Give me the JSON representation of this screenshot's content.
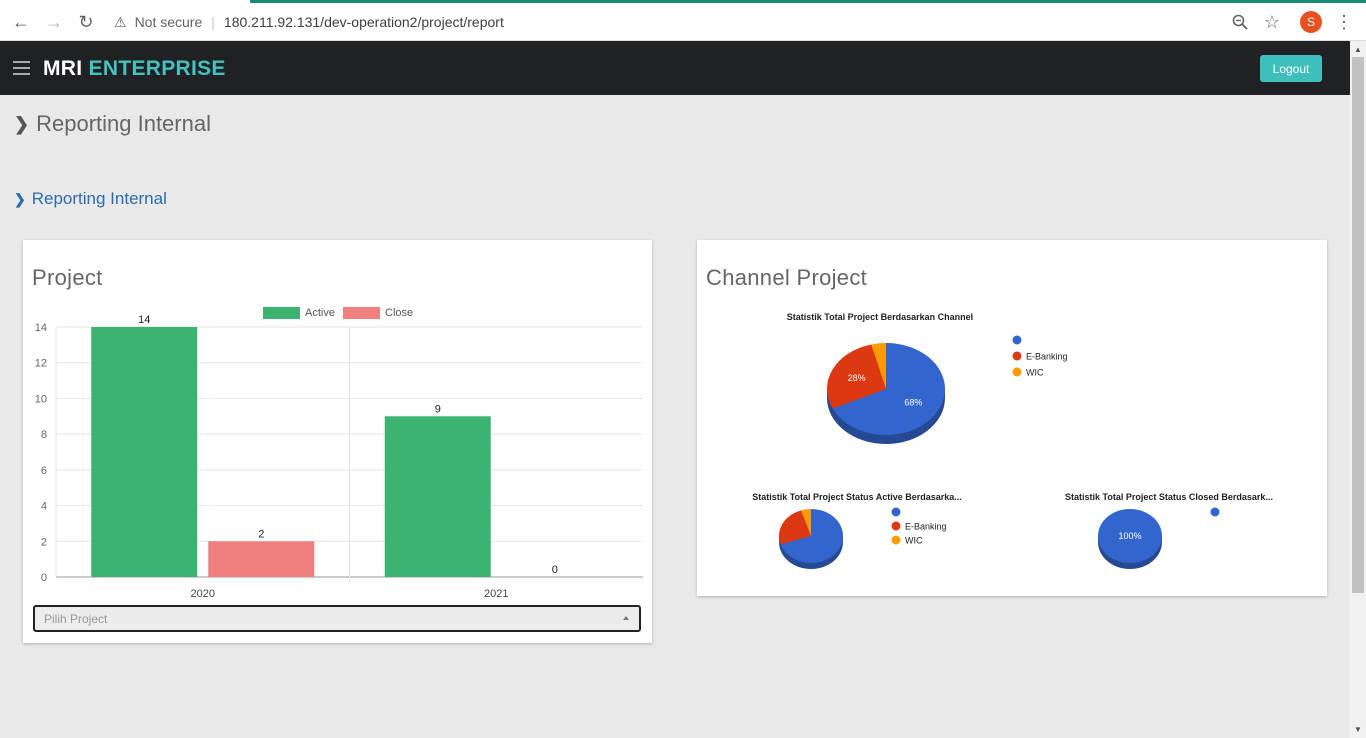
{
  "browser": {
    "not_secure": "Not secure",
    "url": "180.211.92.131/dev-operation2/project/report",
    "profile_initial": "S",
    "accent_color": "#1a8a78"
  },
  "header": {
    "brand_part1": "MRI",
    "brand_part2": "ENTERPRISE",
    "logout_label": "Logout",
    "brand_color": "#44c2c0"
  },
  "page": {
    "title": "Reporting Internal",
    "subtitle": "Reporting Internal"
  },
  "project_card": {
    "title": "Project",
    "select_placeholder": "Pilih Project"
  },
  "channel_card": {
    "title": "Channel Project"
  },
  "chart_data": [
    {
      "type": "bar",
      "categories": [
        "2020",
        "2021"
      ],
      "series": [
        {
          "name": "Active",
          "values": [
            14,
            9
          ],
          "color": "#3cb371"
        },
        {
          "name": "Close",
          "values": [
            2,
            0
          ],
          "color": "#f08080"
        }
      ],
      "ylim": [
        0,
        14
      ],
      "yticks": [
        "0",
        "2",
        "4",
        "6",
        "8",
        "10",
        "12",
        "14"
      ],
      "legend": "top",
      "grid": true
    },
    {
      "type": "pie",
      "title": "Statistik Total Project Berdasarkan Channel",
      "slices": [
        {
          "name": "",
          "value": 68,
          "label": "68%",
          "color": "#3366cc"
        },
        {
          "name": "E-Banking",
          "value": 28,
          "label": "28%",
          "color": "#dc3912"
        },
        {
          "name": "WIC",
          "value": 4,
          "label": "",
          "color": "#ff9900"
        }
      ],
      "legend": "right"
    },
    {
      "type": "pie",
      "title": "Statistik Total Project Status Active Berdasarka...",
      "slices": [
        {
          "name": "",
          "value": 70,
          "label": "",
          "color": "#3366cc"
        },
        {
          "name": "E-Banking",
          "value": 25,
          "label": "",
          "color": "#dc3912"
        },
        {
          "name": "WIC",
          "value": 5,
          "label": "",
          "color": "#ff9900"
        }
      ],
      "legend": "right"
    },
    {
      "type": "pie",
      "title": "Statistik Total Project Status Closed Berdasark...",
      "slices": [
        {
          "name": "",
          "value": 100,
          "label": "100%",
          "color": "#3366cc"
        }
      ],
      "legend": "right"
    }
  ]
}
